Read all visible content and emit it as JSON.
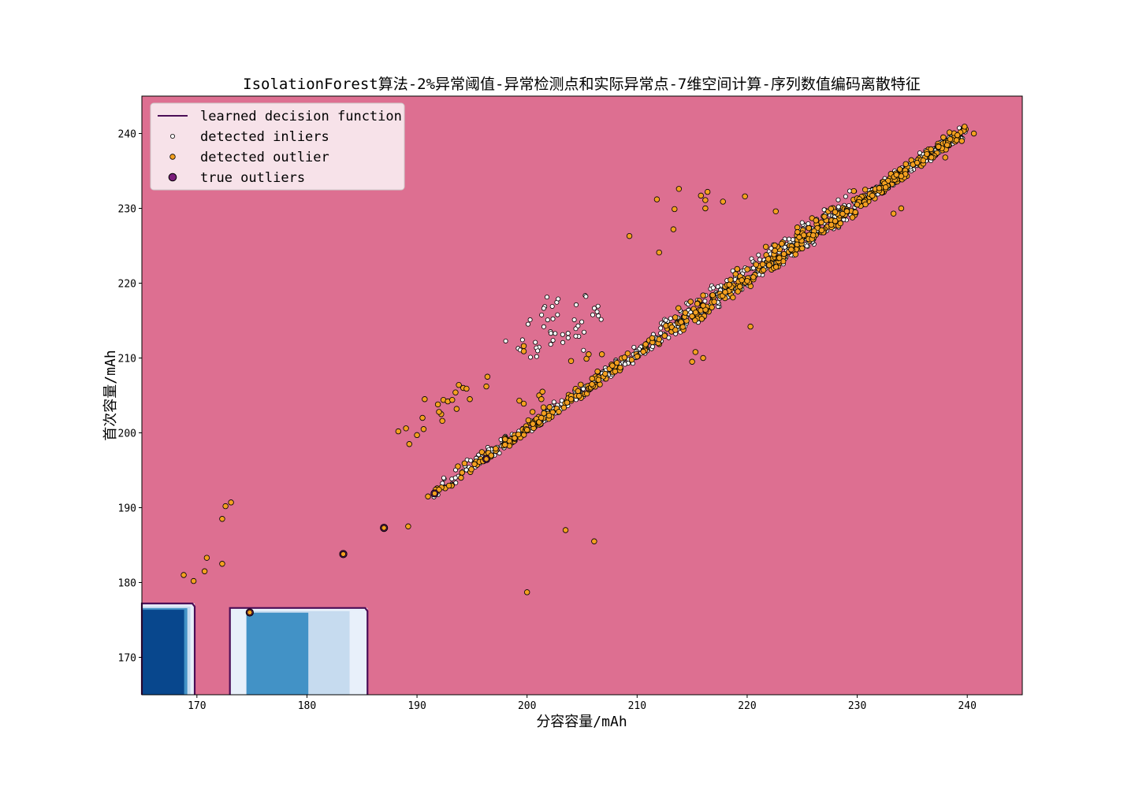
{
  "chart_data": {
    "type": "scatter",
    "title": "IsolationForest算法-2%异常阈值-异常检测点和实际异常点-7维空间计算-序列数值编码离散特征",
    "xlabel": "分容容量/mAh",
    "ylabel": "首次容量/mAh",
    "xlim": [
      165,
      245
    ],
    "ylim": [
      165,
      245
    ],
    "xticks": [
      170,
      180,
      190,
      200,
      210,
      220,
      230,
      240
    ],
    "yticks": [
      170,
      180,
      190,
      200,
      210,
      220,
      230,
      240
    ],
    "grid": false,
    "legend_position": "top-left",
    "colors": {
      "background": "#dd6f91",
      "decision_line": "#4b0d56",
      "inlier": "#ffffff",
      "outlier": "#f4a020",
      "true_outlier": "#7b1d7a",
      "region_dark": "#08478d",
      "region_mid": "#4292c6",
      "region_light": "#c6dbef",
      "region_pale": "#e8f0fa"
    },
    "legend": [
      {
        "label": "learned decision function",
        "marker": "line"
      },
      {
        "label": "detected inliers",
        "marker": "inlier"
      },
      {
        "label": "detected outlier",
        "marker": "outlier"
      },
      {
        "label": "true outliers",
        "marker": "true_outlier"
      }
    ],
    "decision_regions": [
      {
        "x": [
          165,
          169.8
        ],
        "y_top": 177.2
      },
      {
        "x": [
          173,
          185.5
        ],
        "y_top": 176.6
      }
    ],
    "series": {
      "true_outliers": [
        [
          174.8,
          176.0
        ],
        [
          183.3,
          183.8
        ],
        [
          187.0,
          187.3
        ],
        [
          191.6,
          191.9
        ],
        [
          196.3,
          196.5
        ]
      ],
      "outliers_scattered": [
        [
          168.8,
          181.0
        ],
        [
          169.7,
          180.2
        ],
        [
          170.7,
          181.5
        ],
        [
          170.9,
          183.3
        ],
        [
          172.3,
          182.5
        ],
        [
          172.3,
          188.5
        ],
        [
          172.6,
          190.2
        ],
        [
          173.1,
          190.7
        ],
        [
          189.2,
          187.5
        ],
        [
          188.3,
          200.2
        ],
        [
          189.0,
          200.6
        ],
        [
          189.3,
          198.5
        ],
        [
          190.0,
          199.7
        ],
        [
          190.5,
          202.0
        ],
        [
          190.6,
          200.5
        ],
        [
          190.7,
          204.5
        ],
        [
          191.0,
          191.5
        ],
        [
          191.9,
          203.8
        ],
        [
          192.2,
          202.5
        ],
        [
          192.0,
          202.8
        ],
        [
          192.3,
          201.6
        ],
        [
          192.4,
          204.4
        ],
        [
          192.8,
          204.2
        ],
        [
          193.2,
          204.4
        ],
        [
          193.5,
          205.4
        ],
        [
          193.6,
          203.2
        ],
        [
          193.8,
          206.4
        ],
        [
          194.2,
          206.0
        ],
        [
          194.5,
          205.9
        ],
        [
          194.8,
          204.5
        ],
        [
          196.3,
          206.2
        ],
        [
          196.4,
          207.5
        ],
        [
          199.3,
          204.3
        ],
        [
          199.7,
          203.9
        ],
        [
          199.7,
          211.6
        ],
        [
          199.7,
          210.9
        ],
        [
          200.5,
          202.8
        ],
        [
          201.1,
          205.0
        ],
        [
          201.3,
          204.5
        ],
        [
          201.4,
          205.5
        ],
        [
          201.5,
          203.4
        ],
        [
          203.5,
          187.0
        ],
        [
          206.1,
          185.5
        ],
        [
          200.0,
          178.7
        ],
        [
          205.4,
          209.9
        ],
        [
          205.6,
          210.5
        ],
        [
          205.9,
          206.5
        ],
        [
          206.4,
          208.2
        ],
        [
          206.8,
          210.5
        ],
        [
          204.0,
          209.6
        ],
        [
          209.3,
          226.3
        ],
        [
          211.8,
          231.2
        ],
        [
          212.0,
          224.1
        ],
        [
          213.3,
          227.2
        ],
        [
          213.4,
          229.9
        ],
        [
          213.8,
          232.6
        ],
        [
          215.8,
          231.7
        ],
        [
          216.2,
          231.1
        ],
        [
          216.4,
          232.2
        ],
        [
          216.2,
          230.0
        ],
        [
          217.8,
          230.9
        ],
        [
          219.8,
          231.6
        ],
        [
          222.6,
          229.6
        ],
        [
          220.3,
          214.2
        ],
        [
          215.0,
          209.5
        ],
        [
          215.3,
          210.8
        ],
        [
          216.0,
          210.0
        ],
        [
          233.3,
          229.3
        ],
        [
          234.0,
          230.0
        ]
      ],
      "band_outliers": [
        [
          192.0,
          192.4
        ],
        [
          194.0,
          194.0
        ],
        [
          196.0,
          196.2
        ],
        [
          198.0,
          198.4
        ],
        [
          200.0,
          200.4
        ],
        [
          202.0,
          202.3
        ],
        [
          204.0,
          204.5
        ],
        [
          206.0,
          206.3
        ],
        [
          208.0,
          208.2
        ],
        [
          210.0,
          210.2
        ],
        [
          212.0,
          212.5
        ],
        [
          214.0,
          214.8
        ],
        [
          216.0,
          217.0
        ],
        [
          218.0,
          218.8
        ],
        [
          220.0,
          220.3
        ],
        [
          222.0,
          222.4
        ],
        [
          224.0,
          224.5
        ],
        [
          226.0,
          226.4
        ],
        [
          228.0,
          228.3
        ],
        [
          230.0,
          230.5
        ],
        [
          232.0,
          232.7
        ],
        [
          234.0,
          234.3
        ],
        [
          236.0,
          236.4
        ],
        [
          238.0,
          236.8
        ],
        [
          239.5,
          239.0
        ],
        [
          240.6,
          240.0
        ]
      ],
      "inlier_clusters": [
        [
          201.5,
          215.5
        ],
        [
          203.0,
          216.5
        ],
        [
          205.0,
          215.0
        ],
        [
          206.0,
          217.0
        ],
        [
          204.0,
          213.0
        ],
        [
          202.0,
          212.0
        ],
        [
          199.5,
          210.5
        ]
      ],
      "band": {
        "lower": [
          [
            191.5,
            192.0
          ],
          [
            240.0,
            240.0
          ]
        ],
        "upper_offset": 4.5
      }
    }
  }
}
